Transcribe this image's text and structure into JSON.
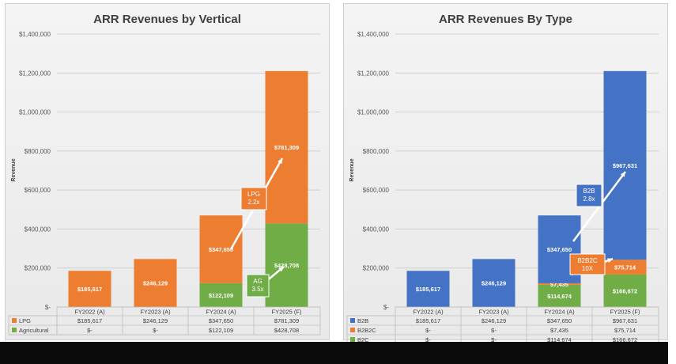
{
  "chart_data": [
    {
      "type": "bar",
      "stacked": true,
      "title": "ARR Revenues by Vertical",
      "ylabel": "Revenue",
      "ylim": [
        0,
        1400000
      ],
      "yticks": [
        "$-",
        "$200,000",
        "$400,000",
        "$600,000",
        "$800,000",
        "$1,000,000",
        "$1,200,000",
        "$1,400,000"
      ],
      "categories": [
        "FY2022 (A)",
        "FY2023 (A)",
        "FY2024 (A)",
        "FY2025 (F)"
      ],
      "series": [
        {
          "name": "Agricultural",
          "color": "#70ad47",
          "values": [
            0,
            0,
            122109,
            428708
          ],
          "labels": [
            "",
            "",
            "$122,109",
            "$428,708"
          ],
          "table": [
            "$-",
            "$-",
            "$122,109",
            "$428,708"
          ]
        },
        {
          "name": "LPG",
          "color": "#ed7d31",
          "values": [
            185617,
            246129,
            347650,
            781309
          ],
          "labels": [
            "$185,617",
            "$246,129",
            "$347,650",
            "$781,309"
          ],
          "table": [
            "$185,617",
            "$246,129",
            "$347,650",
            "$781,309"
          ]
        }
      ],
      "annotations": [
        {
          "text": [
            "LPG",
            "2.2x"
          ],
          "color": "#ed7d31"
        },
        {
          "text": [
            "AG",
            "3.5x"
          ],
          "color": "#70ad47"
        }
      ]
    },
    {
      "type": "bar",
      "stacked": true,
      "title": "ARR Revenues By Type",
      "ylabel": "Revenue",
      "ylim": [
        0,
        1400000
      ],
      "yticks": [
        "$-",
        "$200,000",
        "$400,000",
        "$600,000",
        "$800,000",
        "$1,000,000",
        "$1,200,000",
        "$1,400,000"
      ],
      "categories": [
        "FY2022 (A)",
        "FY2023 (A)",
        "FY2024 (A)",
        "FY2025 (F)"
      ],
      "series": [
        {
          "name": "B2C",
          "color": "#70ad47",
          "values": [
            0,
            0,
            114674,
            166672
          ],
          "labels": [
            "$-",
            "$-",
            "$114,674",
            "$166,672"
          ],
          "table": [
            "$-",
            "$-",
            "$114,674",
            "$166,672"
          ]
        },
        {
          "name": "B2B2C",
          "color": "#ed7d31",
          "values": [
            0,
            0,
            7435,
            75714
          ],
          "labels": [
            "",
            "",
            "$7,435",
            "$75,714"
          ],
          "table": [
            "$-",
            "$-",
            "$7,435",
            "$75,714"
          ]
        },
        {
          "name": "B2B",
          "color": "#4472c4",
          "values": [
            185617,
            246129,
            347650,
            967631
          ],
          "labels": [
            "$185,617",
            "$246,129",
            "$347,650",
            "$967,631"
          ],
          "table": [
            "$185,617",
            "$246,129",
            "$347,650",
            "$967,631"
          ]
        }
      ],
      "annotations": [
        {
          "text": [
            "B2B",
            "2.8x"
          ],
          "color": "#4472c4"
        },
        {
          "text": [
            "B2B2C",
            "10X"
          ],
          "color": "#ed7d31"
        }
      ]
    }
  ]
}
